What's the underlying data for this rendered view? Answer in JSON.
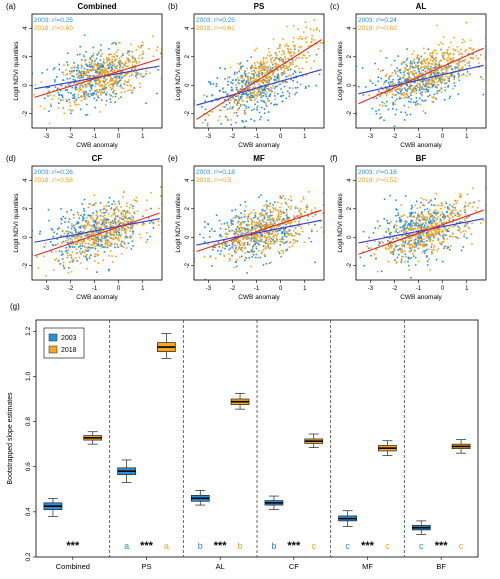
{
  "colors": {
    "y2003": "#2b8fd9",
    "y2018": "#f5a623",
    "line2003": "#2f3bd6",
    "line2018": "#e8281f",
    "axis": "#000000"
  },
  "panels": [
    {
      "letter": "(a)",
      "title": "Combined",
      "ann2003": "2003: r²=0.25",
      "ann2018": "2018: r²=0.60"
    },
    {
      "letter": "(b)",
      "title": "PS",
      "ann2003": "2003: r²=0.25",
      "ann2018": "2018: r²=0.61"
    },
    {
      "letter": "(c)",
      "title": "AL",
      "ann2003": "2003: r²=0.24",
      "ann2018": "2018: r²=0.62"
    },
    {
      "letter": "(d)",
      "title": "CF",
      "ann2003": "2003: r²=0.26",
      "ann2018": "2018: r²=0.56"
    },
    {
      "letter": "(e)",
      "title": "MF",
      "ann2003": "2003: r²=0.18",
      "ann2018": "2018: r²=0.5"
    },
    {
      "letter": "(f)",
      "title": "BF",
      "ann2003": "2003: r²=0.16",
      "ann2018": "2018: r²=0.52"
    }
  ],
  "scatter_axes": {
    "xlabel": "CWB anomaly",
    "ylabel": "Logit NDVI quantiles",
    "xticks": [
      "-3",
      "-2",
      "-1",
      "0",
      "1"
    ],
    "yticks": [
      "-2",
      "0",
      "2",
      "4"
    ]
  },
  "box_panel": {
    "letter": "(g)",
    "ylabel": "Bootstrapped slope estimates",
    "legend": [
      "2003",
      "2018"
    ],
    "yticks": [
      "0.2",
      "0.4",
      "0.6",
      "0.8",
      "1.0",
      "1.2"
    ],
    "stars": "***"
  },
  "chart_data": [
    {
      "type": "scatter",
      "title": "Combined / PS / AL / CF / MF / BF",
      "xlabel": "CWB anomaly",
      "ylabel": "Logit NDVI quantiles",
      "xlim": [
        -3.6,
        1.8
      ],
      "ylim": [
        -3.0,
        5.0
      ],
      "fit_lines": [
        {
          "panel": "Combined",
          "series": [
            {
              "name": "2003",
              "x": [
                -3.5,
                1.7
              ],
              "y": [
                -0.25,
                1.35
              ]
            },
            {
              "name": "2018",
              "x": [
                -3.5,
                1.7
              ],
              "y": [
                -0.85,
                1.85
              ]
            }
          ]
        },
        {
          "panel": "PS",
          "series": [
            {
              "name": "2003",
              "x": [
                -3.5,
                1.7
              ],
              "y": [
                -1.4,
                1.1
              ]
            },
            {
              "name": "2018",
              "x": [
                -3.5,
                1.7
              ],
              "y": [
                -2.4,
                3.2
              ]
            }
          ]
        },
        {
          "panel": "AL",
          "series": [
            {
              "name": "2003",
              "x": [
                -3.5,
                1.7
              ],
              "y": [
                -0.6,
                1.4
              ]
            },
            {
              "name": "2018",
              "x": [
                -3.5,
                1.7
              ],
              "y": [
                -1.3,
                2.6
              ]
            }
          ]
        },
        {
          "panel": "CF",
          "series": [
            {
              "name": "2003",
              "x": [
                -3.5,
                1.7
              ],
              "y": [
                -0.35,
                1.3
              ]
            },
            {
              "name": "2018",
              "x": [
                -3.5,
                1.7
              ],
              "y": [
                -1.3,
                1.7
              ]
            }
          ]
        },
        {
          "panel": "MF",
          "series": [
            {
              "name": "2003",
              "x": [
                -3.5,
                1.7
              ],
              "y": [
                -0.55,
                1.2
              ]
            },
            {
              "name": "2018",
              "x": [
                -3.5,
                1.7
              ],
              "y": [
                -1.0,
                1.9
              ]
            }
          ]
        },
        {
          "panel": "BF",
          "series": [
            {
              "name": "2003",
              "x": [
                -3.5,
                1.7
              ],
              "y": [
                -0.4,
                1.3
              ]
            },
            {
              "name": "2018",
              "x": [
                -3.5,
                1.7
              ],
              "y": [
                -1.2,
                1.9
              ]
            }
          ]
        }
      ]
    },
    {
      "type": "box",
      "title": "(g)",
      "ylabel": "Bootstrapped slope estimates",
      "ylim": [
        0.2,
        1.25
      ],
      "categories": [
        "Combined",
        "PS",
        "AL",
        "CF",
        "MF",
        "BF"
      ],
      "series": [
        {
          "name": "2003",
          "boxes": [
            {
              "min": 0.38,
              "q1": 0.41,
              "median": 0.425,
              "q3": 0.44,
              "max": 0.46
            },
            {
              "min": 0.53,
              "q1": 0.565,
              "median": 0.58,
              "q3": 0.595,
              "max": 0.63
            },
            {
              "min": 0.43,
              "q1": 0.447,
              "median": 0.46,
              "q3": 0.473,
              "max": 0.495
            },
            {
              "min": 0.41,
              "q1": 0.43,
              "median": 0.44,
              "q3": 0.45,
              "max": 0.47
            },
            {
              "min": 0.335,
              "q1": 0.36,
              "median": 0.37,
              "q3": 0.382,
              "max": 0.405
            },
            {
              "min": 0.3,
              "q1": 0.32,
              "median": 0.33,
              "q3": 0.34,
              "max": 0.36
            }
          ],
          "letters": [
            "",
            "a",
            "b",
            "b",
            "c",
            "c"
          ]
        },
        {
          "name": "2018",
          "boxes": [
            {
              "min": 0.7,
              "q1": 0.718,
              "median": 0.728,
              "q3": 0.738,
              "max": 0.755
            },
            {
              "min": 1.08,
              "q1": 1.11,
              "median": 1.13,
              "q3": 1.15,
              "max": 1.19
            },
            {
              "min": 0.855,
              "q1": 0.875,
              "median": 0.888,
              "q3": 0.9,
              "max": 0.925
            },
            {
              "min": 0.685,
              "q1": 0.703,
              "median": 0.713,
              "q3": 0.723,
              "max": 0.745
            },
            {
              "min": 0.65,
              "q1": 0.67,
              "median": 0.682,
              "q3": 0.694,
              "max": 0.715
            },
            {
              "min": 0.66,
              "q1": 0.68,
              "median": 0.69,
              "q3": 0.7,
              "max": 0.72
            }
          ],
          "letters": [
            "",
            "a",
            "b",
            "c",
            "c",
            "c"
          ]
        }
      ]
    }
  ]
}
